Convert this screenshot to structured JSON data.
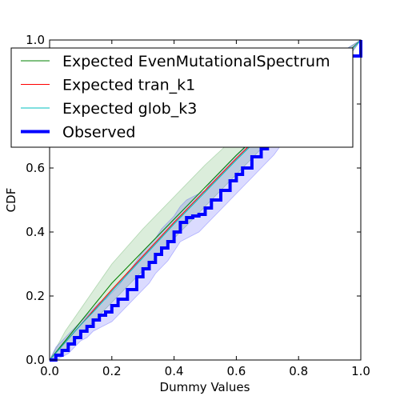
{
  "chart_data": {
    "type": "line",
    "title": "",
    "xlabel": "Dummy Values",
    "ylabel": "CDF",
    "xlim": [
      0,
      1
    ],
    "ylim": [
      0,
      1
    ],
    "xticks": [
      0,
      0.2,
      0.4,
      0.6,
      0.8,
      1
    ],
    "yticks": [
      0,
      0.2,
      0.4,
      0.6,
      0.8,
      1
    ],
    "xtick_labels": [
      "0.0",
      "0.2",
      "0.4",
      "0.6",
      "0.8",
      "1.0"
    ],
    "ytick_labels": [
      "0.0",
      "0.2",
      "0.4",
      "0.6",
      "0.8",
      "1.0"
    ],
    "grid": false,
    "legend_position": "top-left",
    "series": [
      {
        "name": "Expected EvenMutationalSpectrum",
        "color": "#008000",
        "style": "thin",
        "x": [
          0,
          0.05,
          0.1,
          0.15,
          0.2,
          0.3,
          0.4,
          0.5,
          0.6,
          0.7,
          0.8,
          0.9,
          1.0
        ],
        "y": [
          0,
          0.06,
          0.12,
          0.18,
          0.24,
          0.34,
          0.44,
          0.54,
          0.64,
          0.73,
          0.82,
          0.91,
          1.0
        ],
        "band_lower": [
          0,
          0.03,
          0.08,
          0.13,
          0.18,
          0.28,
          0.38,
          0.48,
          0.58,
          0.68,
          0.77,
          0.87,
          1.0
        ],
        "band_upper": [
          0,
          0.09,
          0.16,
          0.23,
          0.3,
          0.41,
          0.51,
          0.61,
          0.7,
          0.78,
          0.87,
          0.94,
          1.0
        ],
        "band_color": "#008000"
      },
      {
        "name": "Expected tran_k1",
        "color": "#ff0000",
        "style": "thin",
        "x": [
          0,
          0.05,
          0.1,
          0.15,
          0.2,
          0.3,
          0.4,
          0.5,
          0.6,
          0.7,
          0.8,
          0.9,
          1.0
        ],
        "y": [
          0,
          0.055,
          0.11,
          0.165,
          0.22,
          0.325,
          0.43,
          0.53,
          0.63,
          0.725,
          0.815,
          0.905,
          1.0
        ]
      },
      {
        "name": "Expected glob_k3",
        "color": "#00bfbf",
        "style": "thin",
        "x": [
          0,
          0.05,
          0.1,
          0.15,
          0.2,
          0.3,
          0.4,
          0.5,
          0.6,
          0.7,
          0.8,
          0.9,
          1.0
        ],
        "y": [
          0,
          0.055,
          0.11,
          0.16,
          0.215,
          0.32,
          0.425,
          0.525,
          0.625,
          0.72,
          0.81,
          0.9,
          1.0
        ]
      },
      {
        "name": "Observed",
        "color": "#0000ff",
        "style": "thick",
        "x": [
          0,
          0.02,
          0.04,
          0.06,
          0.08,
          0.1,
          0.12,
          0.14,
          0.16,
          0.18,
          0.2,
          0.22,
          0.25,
          0.28,
          0.3,
          0.32,
          0.34,
          0.36,
          0.38,
          0.4,
          0.42,
          0.44,
          0.46,
          0.48,
          0.5,
          0.52,
          0.55,
          0.58,
          0.6,
          0.62,
          0.65,
          0.68,
          0.7,
          0.72,
          0.75,
          0.8,
          0.85,
          0.9,
          0.95,
          1.0
        ],
        "y": [
          0,
          0.015,
          0.03,
          0.05,
          0.07,
          0.09,
          0.105,
          0.125,
          0.14,
          0.15,
          0.17,
          0.19,
          0.22,
          0.26,
          0.285,
          0.305,
          0.33,
          0.35,
          0.37,
          0.4,
          0.43,
          0.445,
          0.45,
          0.455,
          0.475,
          0.5,
          0.53,
          0.56,
          0.58,
          0.6,
          0.635,
          0.66,
          0.68,
          0.7,
          0.74,
          0.78,
          0.84,
          0.9,
          0.95,
          1.0
        ],
        "band_lower": [
          0,
          0.0,
          0.01,
          0.02,
          0.04,
          0.06,
          0.07,
          0.09,
          0.1,
          0.11,
          0.12,
          0.14,
          0.17,
          0.2,
          0.22,
          0.24,
          0.27,
          0.29,
          0.31,
          0.34,
          0.37,
          0.38,
          0.39,
          0.4,
          0.42,
          0.44,
          0.47,
          0.5,
          0.52,
          0.54,
          0.57,
          0.6,
          0.62,
          0.64,
          0.68,
          0.73,
          0.79,
          0.86,
          0.93,
          1.0
        ],
        "band_upper": [
          0,
          0.04,
          0.06,
          0.08,
          0.1,
          0.12,
          0.14,
          0.16,
          0.18,
          0.19,
          0.21,
          0.23,
          0.27,
          0.31,
          0.34,
          0.36,
          0.38,
          0.41,
          0.43,
          0.45,
          0.48,
          0.5,
          0.51,
          0.52,
          0.53,
          0.56,
          0.59,
          0.62,
          0.64,
          0.66,
          0.69,
          0.71,
          0.73,
          0.75,
          0.79,
          0.83,
          0.88,
          0.93,
          0.97,
          1.0
        ],
        "band_color": "#0000ff"
      }
    ]
  }
}
